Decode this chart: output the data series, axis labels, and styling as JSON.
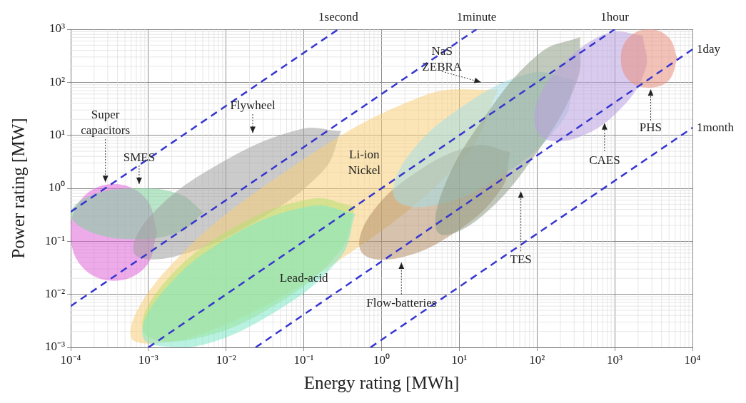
{
  "chart_data": {
    "type": "area",
    "xlabel": "Energy rating [MWh]",
    "ylabel": "Power rating [MW]",
    "log": "xy",
    "grid": true,
    "xlim": [
      0.0001,
      10000
    ],
    "ylim": [
      0.001,
      1000
    ],
    "xticks": [
      {
        "value": 0.0001,
        "label": "10⁻⁴"
      },
      {
        "value": 0.001,
        "label": "10⁻³"
      },
      {
        "value": 0.01,
        "label": "10⁻²"
      },
      {
        "value": 0.1,
        "label": "10⁻¹"
      },
      {
        "value": 1,
        "label": "10⁰"
      },
      {
        "value": 10,
        "label": "10¹"
      },
      {
        "value": 100,
        "label": "10²"
      },
      {
        "value": 1000,
        "label": "10³"
      },
      {
        "value": 10000,
        "label": "10⁴"
      }
    ],
    "yticks": [
      {
        "value": 0.001,
        "label": "10⁻³"
      },
      {
        "value": 0.01,
        "label": "10⁻²"
      },
      {
        "value": 0.1,
        "label": "10⁻¹"
      },
      {
        "value": 1,
        "label": "10⁰"
      },
      {
        "value": 10,
        "label": "10¹"
      },
      {
        "value": 100,
        "label": "10²"
      },
      {
        "value": 1000,
        "label": "10³"
      }
    ],
    "series": [
      {
        "name": "Super capacitors",
        "color": "#e066d8",
        "x": [
          0.0013,
          0.00092,
          0.00036,
          0.00014,
          0.0001,
          0.00014,
          0.00036,
          0.00092
        ],
        "values": [
          0.15,
          0.033,
          0.018,
          0.033,
          0.15,
          0.65,
          1.2,
          0.65
        ]
      },
      {
        "name": "SMES",
        "color": "#7fcf9a",
        "x": [
          0.0051,
          0.0025,
          0.00068,
          0.00018,
          0.0001,
          0.00018,
          0.00068,
          0.0025
        ],
        "values": [
          0.35,
          0.15,
          0.11,
          0.15,
          0.33,
          0.73,
          1.0,
          0.78
        ]
      },
      {
        "name": "Flywheel",
        "color": "#a0a0a0",
        "x": [
          0.3,
          0.18,
          0.023,
          0.0022,
          0.00066,
          0.0011,
          0.0085,
          0.09
        ],
        "values": [
          12,
          2.2,
          0.23,
          0.052,
          0.059,
          0.32,
          3.0,
          13
        ]
      },
      {
        "name": "Li-ion Nickel",
        "color": "#f7cf7a",
        "x": [
          32,
          12,
          0.33,
          0.0055,
          0.00062,
          0.0016,
          0.059,
          3.5
        ],
        "values": [
          74,
          4.1,
          0.051,
          0.0019,
          0.0014,
          0.026,
          2.1,
          56
        ]
      },
      {
        "name": "Lead-acid",
        "color": "#b8e070",
        "x": [
          0.46,
          0.29,
          0.039,
          0.0035,
          0.00088,
          0.0014,
          0.01,
          0.12
        ],
        "values": [
          0.45,
          0.065,
          0.0058,
          0.0014,
          0.0019,
          0.013,
          0.15,
          0.63
        ]
      },
      {
        "color": "#7fe8c8",
        "x": [
          0.46,
          0.29,
          0.039,
          0.0035,
          0.00088,
          0.0014,
          0.01,
          0.12
        ],
        "values": [
          0.33,
          0.048,
          0.0043,
          0.001,
          0.0014,
          0.0095,
          0.11,
          0.46
        ]
      },
      {
        "name": "Flow-batteries",
        "color": "#b58f6a",
        "x": [
          45,
          35,
          9.0,
          1.6,
          0.55,
          0.7,
          2.8,
          16
        ],
        "values": [
          4.8,
          1.0,
          0.15,
          0.048,
          0.063,
          0.3,
          2.0,
          6.4
        ]
      },
      {
        "name": "NaS ZEBRA",
        "color": "#a6dfe6",
        "x": [
          300,
          220,
          41,
          5.3,
          1.5,
          2.1,
          11,
          86
        ],
        "values": [
          110,
          20,
          2.0,
          0.49,
          0.63,
          3.7,
          35,
          150
        ]
      },
      {
        "name": "TES",
        "color": "#8f9f86",
        "x": [
          360,
          330,
          96,
          18,
          5.5,
          6.0,
          21,
          110
        ],
        "values": [
          710,
          110,
          4.4,
          0.27,
          0.14,
          0.85,
          22,
          360
        ]
      },
      {
        "name": "CAES",
        "color": "#b9a0e0",
        "x": [
          2300,
          2500,
          1100,
          290,
          110,
          100,
          240,
          880
        ],
        "values": [
          760,
          180,
          28,
          8.5,
          9.9,
          41,
          260,
          880
        ]
      },
      {
        "name": "PHS",
        "color": "#e8907f",
        "x": [
          6400,
          5000,
          2800,
          1500,
          1200,
          1500,
          2800,
          5000
        ],
        "values": [
          280,
          110,
          79,
          110,
          280,
          690,
          1000,
          690
        ]
      },
      {
        "name": "1second",
        "type": "line",
        "line_style": "dashed",
        "color": "#3535d0",
        "x": [
          0.0001,
          0.2778
        ],
        "values": [
          0.36,
          1000
        ]
      },
      {
        "name": "1minute",
        "type": "line",
        "line_style": "dashed",
        "color": "#3535d0",
        "x": [
          0.0001,
          16.67
        ],
        "values": [
          0.006,
          1000
        ]
      },
      {
        "name": "1hour",
        "type": "line",
        "line_style": "dashed",
        "color": "#3535d0",
        "x": [
          0.001,
          1000
        ],
        "values": [
          0.001,
          1000
        ]
      },
      {
        "name": "1day",
        "type": "line",
        "line_style": "dashed",
        "color": "#3535d0",
        "x": [
          0.024,
          10000
        ],
        "values": [
          0.001,
          416.7
        ]
      },
      {
        "name": "1month",
        "type": "line",
        "line_style": "dashed",
        "color": "#3535d0",
        "x": [
          0.72,
          10000
        ],
        "values": [
          0.001,
          13.89
        ]
      }
    ]
  }
}
